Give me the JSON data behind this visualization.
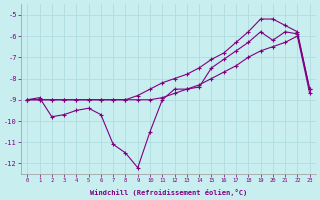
{
  "xlabel": "Windchill (Refroidissement éolien,°C)",
  "bg_color": "#c8eef0",
  "grid_color": "#b0dde0",
  "line_color": "#800080",
  "xlim": [
    -0.5,
    23.5
  ],
  "ylim": [
    -12.5,
    -4.5
  ],
  "yticks": [
    -12,
    -11,
    -10,
    -9,
    -8,
    -7,
    -6,
    -5
  ],
  "xticks": [
    0,
    1,
    2,
    3,
    4,
    5,
    6,
    7,
    8,
    9,
    10,
    11,
    12,
    13,
    14,
    15,
    16,
    17,
    18,
    19,
    20,
    21,
    22,
    23
  ],
  "line1_x": [
    0,
    1,
    2,
    3,
    4,
    5,
    6,
    7,
    8,
    9,
    10,
    11,
    12,
    13,
    14,
    15,
    16,
    17,
    18,
    19,
    20,
    21,
    22,
    23
  ],
  "line1_y": [
    -9.0,
    -8.9,
    -9.8,
    -9.7,
    -9.5,
    -9.4,
    -9.7,
    -11.1,
    -11.5,
    -12.2,
    -10.5,
    -9.0,
    -8.5,
    -8.5,
    -8.4,
    -7.5,
    -7.1,
    -6.7,
    -6.3,
    -5.8,
    -6.2,
    -5.8,
    -5.9,
    -8.5
  ],
  "line2_x": [
    0,
    1,
    2,
    3,
    4,
    5,
    6,
    7,
    8,
    9,
    10,
    11,
    12,
    13,
    14,
    15,
    16,
    17,
    18,
    19,
    20,
    21,
    22,
    23
  ],
  "line2_y": [
    -9.0,
    -9.0,
    -9.0,
    -9.0,
    -9.0,
    -9.0,
    -9.0,
    -9.0,
    -9.0,
    -8.8,
    -8.5,
    -8.2,
    -8.0,
    -7.8,
    -7.5,
    -7.1,
    -6.8,
    -6.3,
    -5.8,
    -5.2,
    -5.2,
    -5.5,
    -5.8,
    -8.5
  ],
  "line3_x": [
    0,
    1,
    2,
    3,
    4,
    5,
    6,
    7,
    8,
    9,
    10,
    11,
    12,
    13,
    14,
    15,
    16,
    17,
    18,
    19,
    20,
    21,
    22,
    23
  ],
  "line3_y": [
    -9.0,
    -9.0,
    -9.0,
    -9.0,
    -9.0,
    -9.0,
    -9.0,
    -9.0,
    -9.0,
    -9.0,
    -9.0,
    -8.9,
    -8.7,
    -8.5,
    -8.3,
    -8.0,
    -7.7,
    -7.4,
    -7.0,
    -6.7,
    -6.5,
    -6.3,
    -6.0,
    -8.7
  ]
}
